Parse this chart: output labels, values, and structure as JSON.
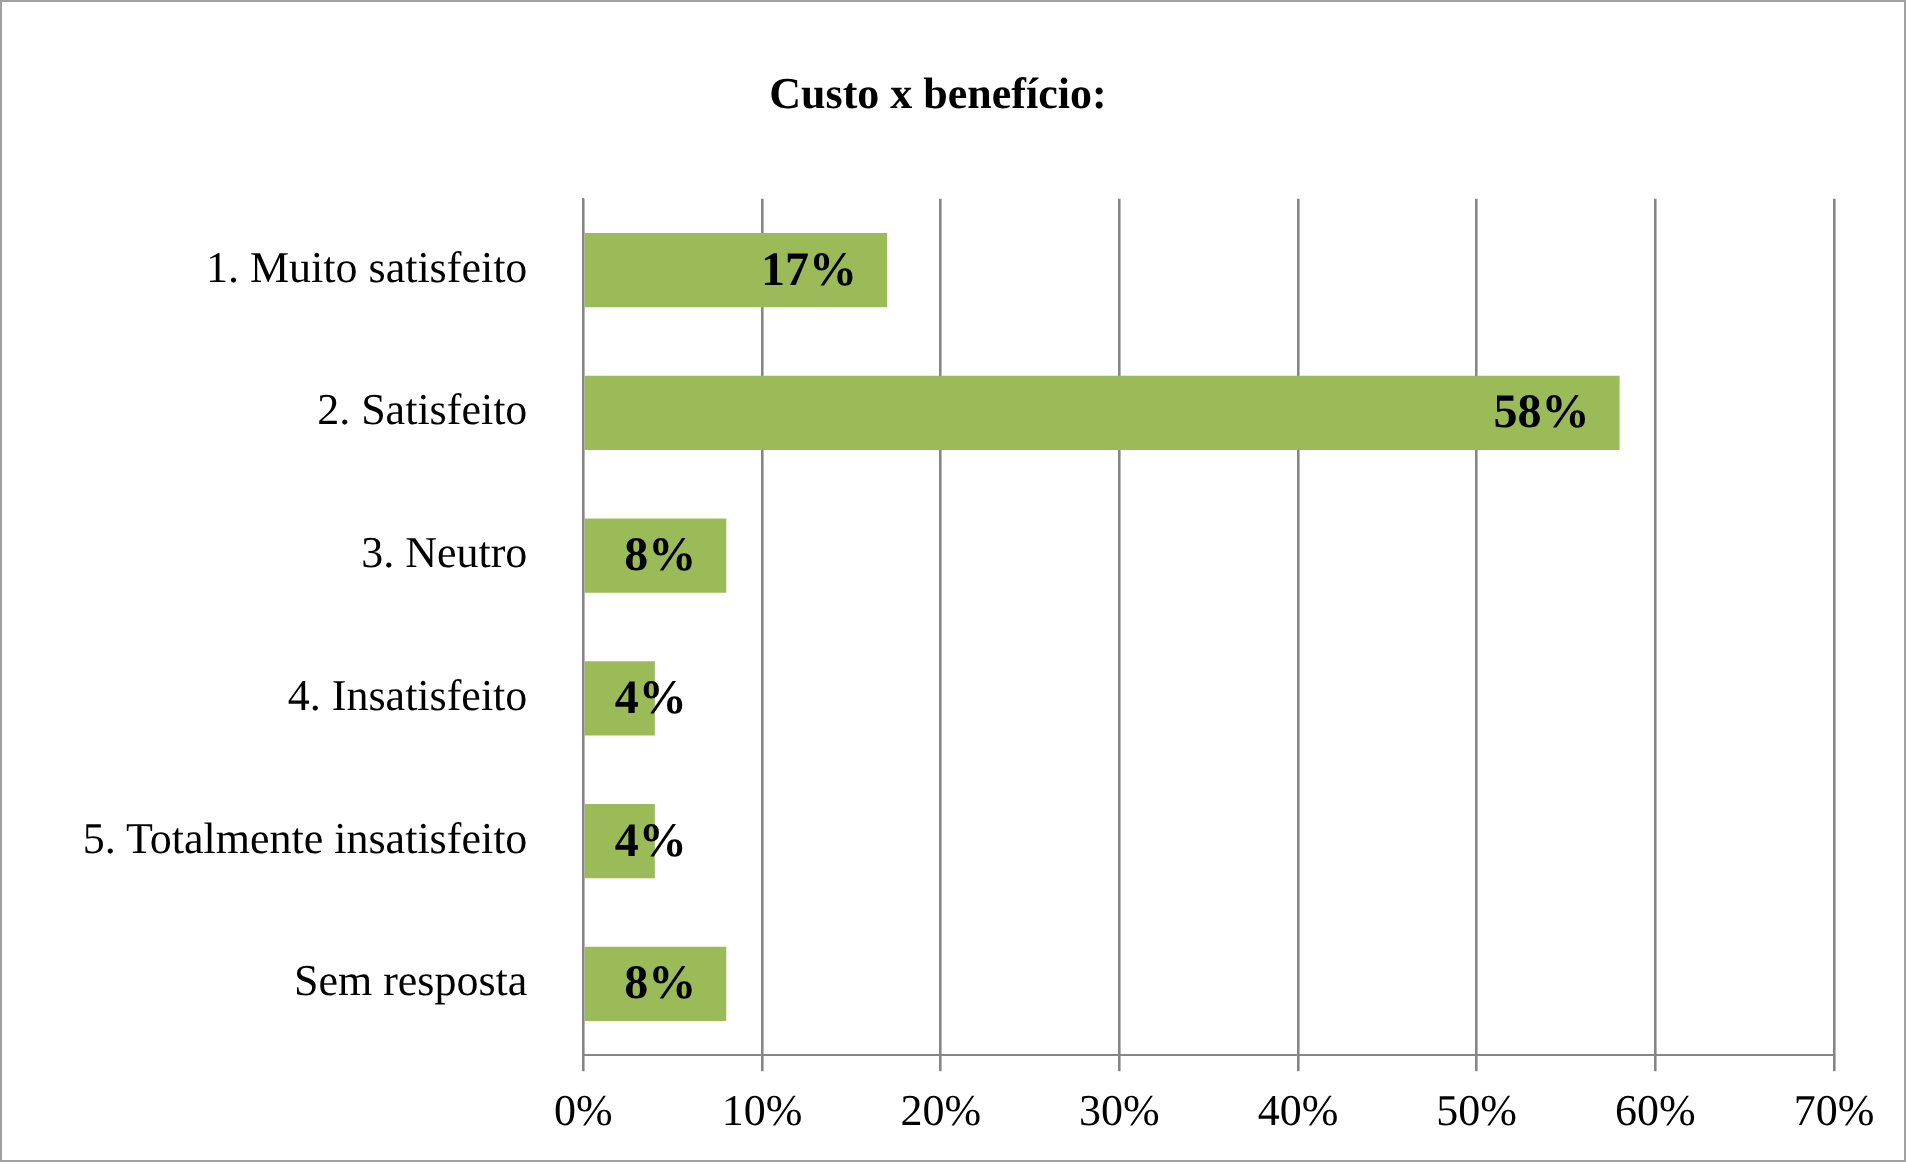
{
  "chart_data": {
    "type": "bar",
    "orientation": "horizontal",
    "title": "Custo x benefício:",
    "categories": [
      "1. Muito satisfeito",
      "2. Satisfeito",
      "3. Neutro",
      "4. Insatisfeito",
      "5. Totalmente insatisfeito",
      "Sem resposta"
    ],
    "values": [
      17,
      58,
      8,
      4,
      4,
      8
    ],
    "value_labels": [
      "17%",
      "58%",
      "8%",
      "4%",
      "4%",
      "8%"
    ],
    "color": "#9bbb59",
    "xlim": [
      0,
      70
    ],
    "xticks": [
      {
        "value": 0,
        "label": "0%"
      },
      {
        "value": 10,
        "label": "10%"
      },
      {
        "value": 20,
        "label": "20%"
      },
      {
        "value": 30,
        "label": "30%"
      },
      {
        "value": 40,
        "label": "40%"
      },
      {
        "value": 50,
        "label": "50%"
      },
      {
        "value": 60,
        "label": "60%"
      },
      {
        "value": 70,
        "label": "70%"
      }
    ],
    "grid": "x",
    "legend": false
  }
}
